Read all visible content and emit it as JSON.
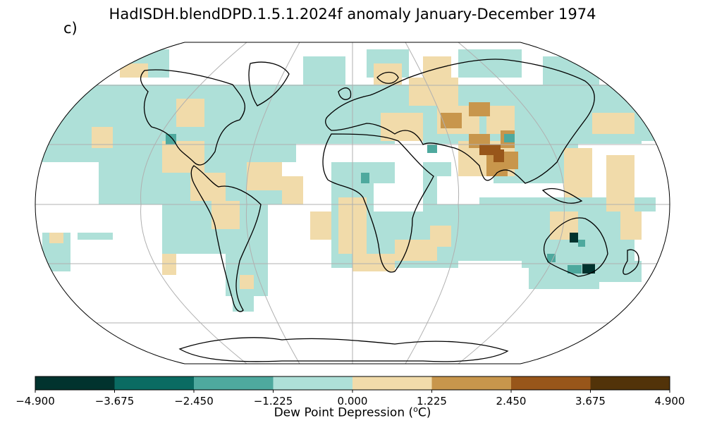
{
  "title": "HadISDH.blendDPD.1.5.1.2024f anomaly January-December 1974",
  "panel_label": "c)",
  "colorbar": {
    "label_prefix": "Dew Point Depression (",
    "label_sup": "o",
    "label_suffix": "C)",
    "ticks": [
      "−4.900",
      "−3.675",
      "−2.450",
      "−1.225",
      "0.000",
      "1.225",
      "2.450",
      "3.675",
      "4.900"
    ],
    "colors": [
      "#01332e",
      "#0a6b62",
      "#4ea99e",
      "#aee0d8",
      "#f1dbaa",
      "#c8964c",
      "#98561a",
      "#523309"
    ]
  },
  "map_data": {
    "projection": "Robinson",
    "grid_resolution_deg": 5,
    "colors": {
      "light_teal": "#aee0d8",
      "mid_teal": "#4ea99e",
      "dark_teal": "#01332e",
      "light_tan": "#f1dbaa",
      "mid_tan": "#c8964c",
      "dark_brown": "#98561a"
    }
  }
}
